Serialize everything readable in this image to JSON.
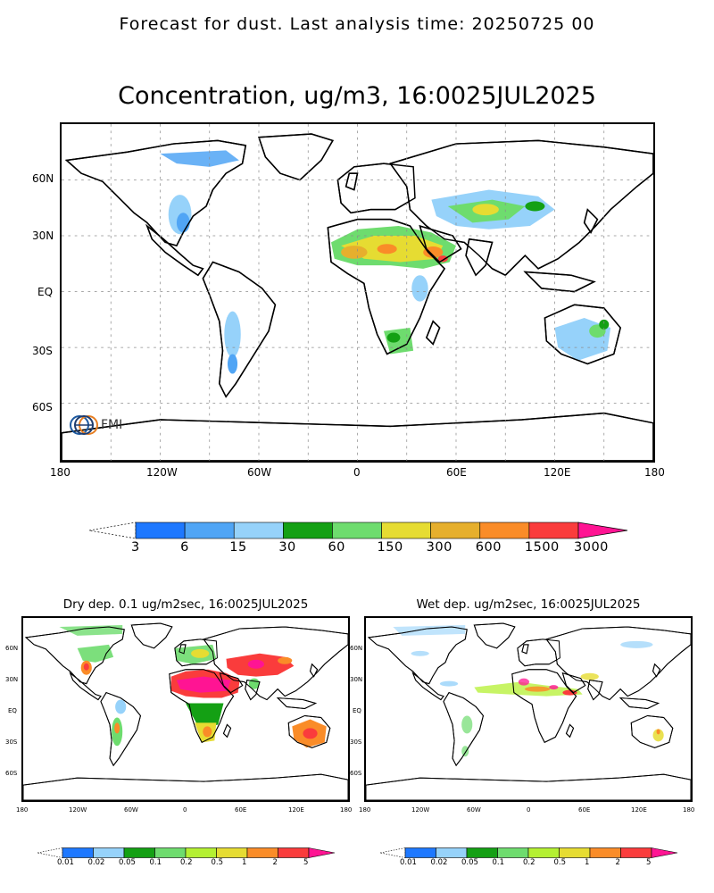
{
  "header": {
    "text": "Forecast for dust. Last analysis time: 20250725 00"
  },
  "main_map": {
    "title": "Concentration, ug/m3, 16:0025JUL2025",
    "lat_labels": [
      "60N",
      "30N",
      "EQ",
      "30S",
      "60S"
    ],
    "lon_labels": [
      "180",
      "120W",
      "60W",
      "0",
      "60E",
      "120E",
      "180"
    ],
    "logo_text": "FMI",
    "colorbar": {
      "labels": [
        "3",
        "6",
        "15",
        "30",
        "60",
        "150",
        "300",
        "600",
        "1500",
        "3000"
      ],
      "colors": [
        "#1e78ff",
        "#50a5f5",
        "#96d2fa",
        "#14a014",
        "#6edc6e",
        "#e6dc32",
        "#e6af2d",
        "#fa8c28",
        "#fa3c3c",
        "#ff1493"
      ]
    }
  },
  "dry_map": {
    "title": "Dry dep. 0.1 ug/m2sec, 16:0025JUL2025",
    "lat_labels": [
      "60N",
      "30N",
      "EQ",
      "30S",
      "60S"
    ],
    "lon_labels": [
      "180",
      "120W",
      "60W",
      "0",
      "60E",
      "120E",
      "180"
    ],
    "colorbar": {
      "labels": [
        "0.01",
        "0.02",
        "0.05",
        "0.1",
        "0.2",
        "0.5",
        "1",
        "2",
        "5"
      ],
      "colors": [
        "#1e78ff",
        "#96d2fa",
        "#14a014",
        "#6edc6e",
        "#b4f032",
        "#e6dc32",
        "#fa8c28",
        "#fa3c3c",
        "#ff1493"
      ]
    }
  },
  "wet_map": {
    "title": "Wet dep. ug/m2sec, 16:0025JUL2025",
    "lat_labels": [
      "60N",
      "30N",
      "EQ",
      "30S",
      "60S"
    ],
    "lon_labels": [
      "180",
      "120W",
      "60W",
      "0",
      "60E",
      "120E",
      "180"
    ],
    "colorbar": {
      "labels": [
        "0.01",
        "0.02",
        "0.05",
        "0.1",
        "0.2",
        "0.5",
        "1",
        "2",
        "5"
      ],
      "colors": [
        "#1e78ff",
        "#96d2fa",
        "#14a014",
        "#6edc6e",
        "#b4f032",
        "#e6dc32",
        "#fa8c28",
        "#fa3c3c",
        "#ff1493"
      ]
    }
  }
}
